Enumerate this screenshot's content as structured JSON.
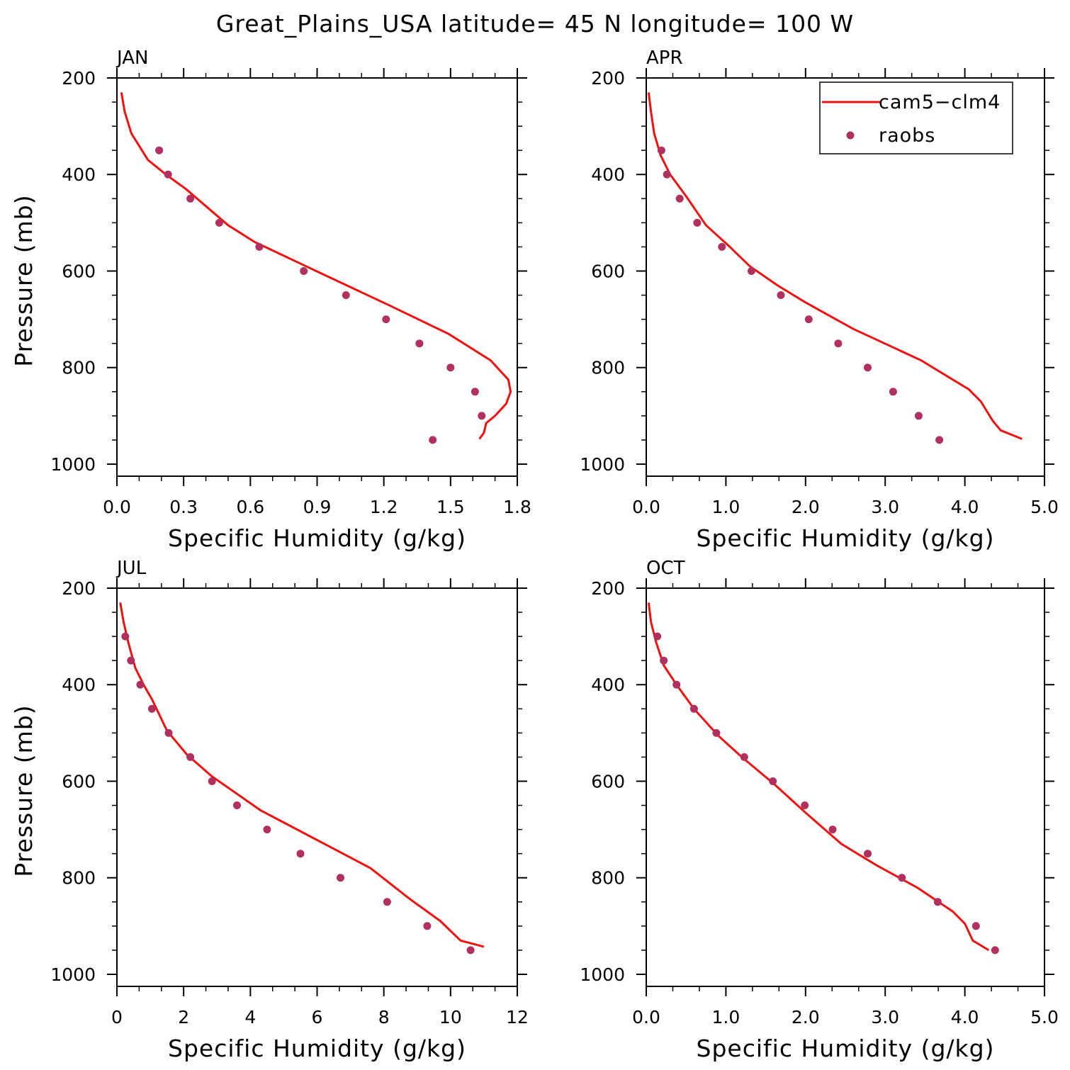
{
  "figure": {
    "title": "Great_Plains_USA  latitude= 45 N longitude= 100 W"
  },
  "legend": {
    "location": "top-right of APR panel",
    "entries": [
      {
        "label": "cam5−clm4",
        "style": "line",
        "color": "#ee1111"
      },
      {
        "label": "raobs",
        "style": "marker",
        "color": "#b03060"
      }
    ]
  },
  "colors": {
    "model": "#ee1111",
    "obs": "#b03060",
    "axes": "#000000"
  },
  "chart_data": [
    {
      "type": "line",
      "panel": "JAN",
      "xlabel": "Specific Humidity (g/kg)",
      "ylabel": "Pressure (mb)",
      "xlim": [
        0,
        1.8
      ],
      "ylim": [
        200,
        1025
      ],
      "y_inverted": true,
      "xticks": [
        0,
        0.3,
        0.6,
        0.9,
        1.2,
        1.5,
        1.8
      ],
      "xtick_labels": [
        "0.0",
        "0.3",
        "0.6",
        "0.9",
        "1.2",
        "1.5",
        "1.8"
      ],
      "yticks": [
        200,
        400,
        600,
        800,
        1000
      ],
      "ytick_labels": [
        "200",
        "400",
        "600",
        "800",
        "1000"
      ],
      "series": [
        {
          "name": "cam5−clm4",
          "kind": "line",
          "x": [
            0.02,
            0.035,
            0.065,
            0.14,
            0.22,
            0.31,
            0.5,
            0.62,
            0.85,
            1.22,
            1.49,
            1.68,
            1.76,
            1.77,
            1.75,
            1.7,
            1.66,
            1.65,
            1.63
          ],
          "y": [
            230,
            270,
            315,
            370,
            400,
            430,
            505,
            540,
            590,
            670,
            730,
            785,
            825,
            850,
            875,
            900,
            915,
            935,
            948
          ]
        },
        {
          "name": "raobs",
          "kind": "scatter",
          "x": [
            0.19,
            0.23,
            0.33,
            0.46,
            0.64,
            0.84,
            1.03,
            1.21,
            1.36,
            1.5,
            1.61,
            1.64,
            1.42
          ],
          "y": [
            350,
            400,
            450,
            500,
            550,
            600,
            650,
            700,
            750,
            800,
            850,
            900,
            950
          ]
        }
      ]
    },
    {
      "type": "line",
      "panel": "APR",
      "xlabel": "Specific Humidity (g/kg)",
      "ylabel": "",
      "xlim": [
        0,
        5
      ],
      "ylim": [
        200,
        1025
      ],
      "y_inverted": true,
      "xticks": [
        0,
        1,
        2,
        3,
        4,
        5
      ],
      "xtick_labels": [
        "0.0",
        "1.0",
        "2.0",
        "3.0",
        "4.0",
        "5.0"
      ],
      "yticks": [
        200,
        400,
        600,
        800,
        1000
      ],
      "ytick_labels": [
        "200",
        "400",
        "600",
        "800",
        "1000"
      ],
      "series": [
        {
          "name": "cam5−clm4",
          "kind": "line",
          "x": [
            0.03,
            0.06,
            0.1,
            0.18,
            0.3,
            0.5,
            0.75,
            1.05,
            1.3,
            1.65,
            2.0,
            2.6,
            3.45,
            3.85,
            4.05,
            4.2,
            4.35,
            4.45,
            4.72
          ],
          "y": [
            230,
            270,
            315,
            360,
            400,
            445,
            505,
            550,
            590,
            630,
            665,
            720,
            785,
            825,
            845,
            870,
            910,
            930,
            948
          ]
        },
        {
          "name": "raobs",
          "kind": "scatter",
          "x": [
            0.19,
            0.26,
            0.42,
            0.64,
            0.95,
            1.32,
            1.69,
            2.04,
            2.41,
            2.78,
            3.1,
            3.42,
            3.68
          ],
          "y": [
            350,
            400,
            450,
            500,
            550,
            600,
            650,
            700,
            750,
            800,
            850,
            900,
            950
          ]
        }
      ]
    },
    {
      "type": "line",
      "panel": "JUL",
      "xlabel": "Specific Humidity (g/kg)",
      "ylabel": "Pressure (mb)",
      "xlim": [
        0,
        12
      ],
      "ylim": [
        200,
        1025
      ],
      "y_inverted": true,
      "xticks": [
        0,
        2,
        4,
        6,
        8,
        10,
        12
      ],
      "xtick_labels": [
        "0",
        "2",
        "4",
        "6",
        "8",
        "10",
        "12"
      ],
      "yticks": [
        200,
        400,
        600,
        800,
        1000
      ],
      "ytick_labels": [
        "200",
        "400",
        "600",
        "800",
        "1000"
      ],
      "series": [
        {
          "name": "cam5−clm4",
          "kind": "line",
          "x": [
            0.1,
            0.2,
            0.35,
            0.55,
            0.8,
            1.05,
            1.5,
            2.1,
            2.85,
            4.3,
            7.6,
            8.8,
            9.3,
            9.7,
            10.0,
            10.3,
            11.0
          ],
          "y": [
            230,
            270,
            315,
            365,
            400,
            430,
            495,
            545,
            590,
            660,
            780,
            845,
            870,
            890,
            910,
            930,
            943
          ]
        },
        {
          "name": "raobs",
          "kind": "scatter",
          "x": [
            0.25,
            0.42,
            0.7,
            1.05,
            1.55,
            2.2,
            2.85,
            3.6,
            4.5,
            5.5,
            6.7,
            8.1,
            9.3,
            10.6
          ],
          "y": [
            300,
            350,
            400,
            450,
            500,
            550,
            600,
            650,
            700,
            750,
            800,
            850,
            900,
            950
          ]
        }
      ]
    },
    {
      "type": "line",
      "panel": "OCT",
      "xlabel": "Specific Humidity (g/kg)",
      "ylabel": "",
      "xlim": [
        0,
        5
      ],
      "ylim": [
        200,
        1025
      ],
      "y_inverted": true,
      "xticks": [
        0,
        1,
        2,
        3,
        4,
        5
      ],
      "xtick_labels": [
        "0.0",
        "1.0",
        "2.0",
        "3.0",
        "4.0",
        "5.0"
      ],
      "yticks": [
        200,
        400,
        600,
        800,
        1000
      ],
      "ytick_labels": [
        "200",
        "400",
        "600",
        "800",
        "1000"
      ],
      "series": [
        {
          "name": "cam5−clm4",
          "kind": "line",
          "x": [
            0.03,
            0.06,
            0.12,
            0.22,
            0.38,
            0.6,
            0.9,
            1.2,
            1.6,
            2.0,
            2.45,
            2.9,
            3.4,
            3.85,
            4.0,
            4.1,
            4.3
          ],
          "y": [
            230,
            270,
            310,
            360,
            400,
            450,
            505,
            550,
            605,
            665,
            730,
            775,
            820,
            870,
            895,
            930,
            950
          ]
        },
        {
          "name": "raobs",
          "kind": "scatter",
          "x": [
            0.14,
            0.22,
            0.38,
            0.6,
            0.88,
            1.23,
            1.59,
            1.99,
            2.34,
            2.78,
            3.21,
            3.66,
            4.14,
            4.38
          ],
          "y": [
            300,
            350,
            400,
            450,
            500,
            550,
            600,
            650,
            700,
            750,
            800,
            850,
            900,
            950
          ]
        }
      ]
    }
  ]
}
